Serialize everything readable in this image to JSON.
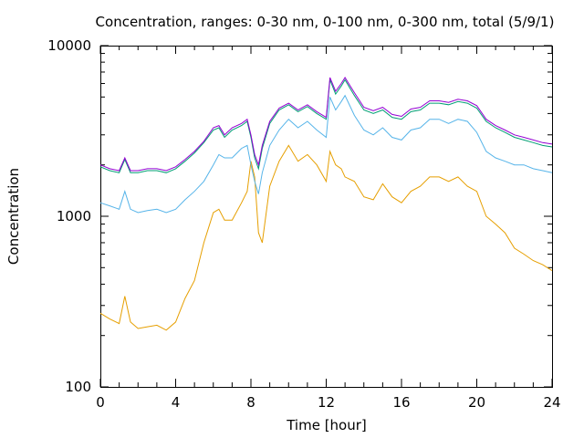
{
  "chart_data": {
    "type": "line",
    "title": "Concentration, ranges: 0-30 nm, 0-100 nm, 0-300 nm, total (5/9/1)",
    "xlabel": "Time [hour]",
    "ylabel": "Concentration",
    "xlim": [
      0,
      24
    ],
    "ylim": [
      100,
      10000
    ],
    "yscale": "log",
    "grid": false,
    "xticks": [
      0,
      4,
      8,
      12,
      16,
      20,
      24
    ],
    "xtick_labels": [
      "0",
      "4",
      "8",
      "12",
      "16",
      "20",
      "24"
    ],
    "yticks": [
      100,
      1000,
      10000
    ],
    "ytick_labels": [
      "100",
      "1000",
      "10000"
    ],
    "x": [
      0,
      0.5,
      1.0,
      1.3,
      1.6,
      2.0,
      2.5,
      3.0,
      3.5,
      4.0,
      4.5,
      5.0,
      5.5,
      6.0,
      6.3,
      6.6,
      7.0,
      7.5,
      7.8,
      8.0,
      8.2,
      8.4,
      8.6,
      9.0,
      9.5,
      10.0,
      10.5,
      11.0,
      11.5,
      12.0,
      12.2,
      12.5,
      12.8,
      13.0,
      13.5,
      14.0,
      14.5,
      15.0,
      15.5,
      16.0,
      16.5,
      17.0,
      17.5,
      18.0,
      18.5,
      19.0,
      19.5,
      20.0,
      20.5,
      21.0,
      21.5,
      22.0,
      22.5,
      23.0,
      23.5,
      24.0
    ],
    "series": [
      {
        "name": "0-30 nm",
        "color": "#e69f00",
        "values": [
          270,
          250,
          235,
          340,
          240,
          220,
          225,
          230,
          215,
          240,
          330,
          420,
          700,
          1050,
          1100,
          950,
          950,
          1200,
          1400,
          2100,
          1700,
          800,
          700,
          1500,
          2100,
          2600,
          2100,
          2300,
          2000,
          1600,
          2400,
          2000,
          1900,
          1700,
          1600,
          1300,
          1250,
          1550,
          1300,
          1200,
          1400,
          1500,
          1700,
          1700,
          1600,
          1700,
          1500,
          1400,
          1000,
          900,
          800,
          650,
          600,
          550,
          520,
          480
        ]
      },
      {
        "name": "0-100 nm",
        "color": "#56b4e9",
        "values": [
          1200,
          1150,
          1100,
          1400,
          1100,
          1050,
          1080,
          1100,
          1050,
          1100,
          1250,
          1400,
          1600,
          2000,
          2300,
          2200,
          2200,
          2500,
          2600,
          2000,
          1600,
          1350,
          1800,
          2600,
          3200,
          3700,
          3300,
          3600,
          3200,
          2900,
          5000,
          4200,
          4700,
          5100,
          3900,
          3200,
          3000,
          3300,
          2900,
          2800,
          3200,
          3300,
          3700,
          3700,
          3500,
          3700,
          3600,
          3100,
          2400,
          2200,
          2100,
          2000,
          2000,
          1900,
          1850,
          1800
        ]
      },
      {
        "name": "0-300 nm",
        "color": "#009e73",
        "values": [
          1950,
          1850,
          1800,
          2150,
          1800,
          1800,
          1850,
          1850,
          1800,
          1900,
          2100,
          2350,
          2700,
          3200,
          3300,
          2900,
          3200,
          3400,
          3600,
          2900,
          2200,
          1900,
          2500,
          3500,
          4200,
          4500,
          4100,
          4400,
          4000,
          3700,
          6300,
          5200,
          5800,
          6300,
          5100,
          4200,
          4000,
          4200,
          3800,
          3700,
          4100,
          4200,
          4600,
          4600,
          4500,
          4700,
          4600,
          4300,
          3600,
          3300,
          3100,
          2900,
          2800,
          2700,
          2600,
          2550
        ]
      },
      {
        "name": "total",
        "color": "#9400d3",
        "values": [
          2000,
          1900,
          1850,
          2200,
          1850,
          1850,
          1900,
          1900,
          1850,
          1950,
          2150,
          2400,
          2750,
          3300,
          3400,
          3000,
          3300,
          3500,
          3700,
          3000,
          2300,
          2000,
          2600,
          3600,
          4300,
          4600,
          4200,
          4500,
          4100,
          3800,
          6500,
          5400,
          6000,
          6500,
          5300,
          4350,
          4150,
          4350,
          3950,
          3850,
          4250,
          4350,
          4750,
          4750,
          4650,
          4850,
          4750,
          4450,
          3700,
          3400,
          3200,
          3000,
          2900,
          2800,
          2700,
          2650
        ]
      }
    ]
  }
}
